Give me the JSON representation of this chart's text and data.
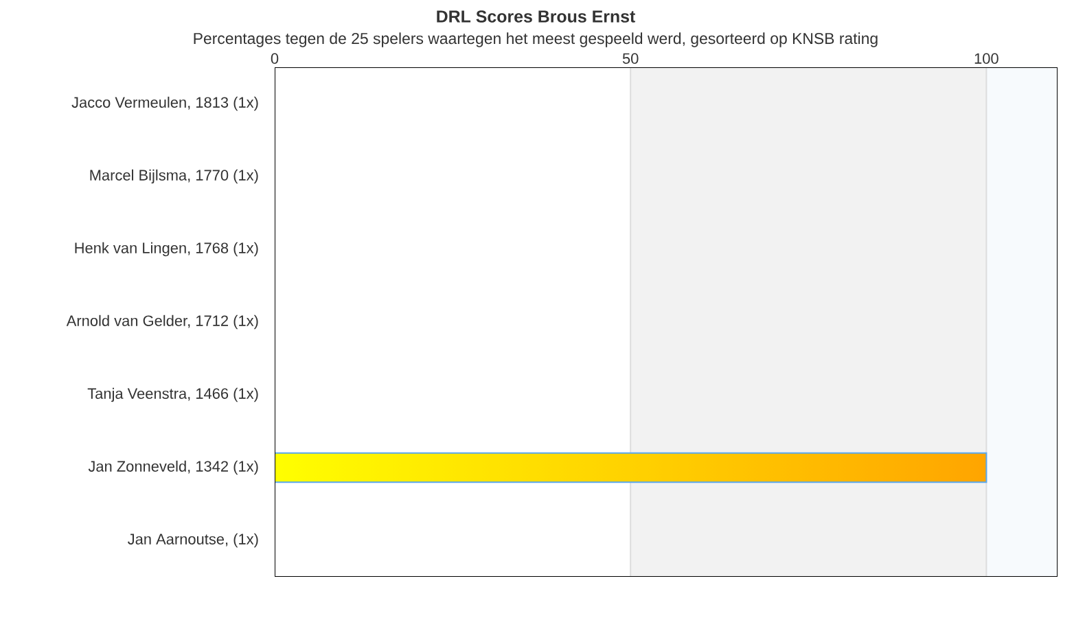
{
  "chart_data": {
    "type": "bar",
    "orientation": "horizontal",
    "title": "DRL Scores Brous Ernst",
    "subtitle": "Percentages tegen de 25 spelers waartegen het meest gespeeld werd, gesorteerd op KNSB rating",
    "categories": [
      "Jacco Vermeulen, 1813 (1x)",
      "Marcel Bijlsma, 1770 (1x)",
      "Henk van Lingen, 1768 (1x)",
      "Arnold van Gelder, 1712 (1x)",
      "Tanja Veenstra, 1466 (1x)",
      "Jan Zonneveld, 1342 (1x)",
      "Jan Aarnoutse,  (1x)"
    ],
    "values": [
      0,
      0,
      0,
      0,
      0,
      100,
      0
    ],
    "color": "#ffa500",
    "xlim": [
      0,
      110
    ],
    "xticks": [
      0,
      50,
      100
    ],
    "grid": "x",
    "bands": [
      {
        "axis": "x",
        "from": 50,
        "to": 100,
        "color": "#f2f2f2"
      },
      {
        "axis": "x",
        "from": 100,
        "to": 110,
        "color": "#f7fafd"
      }
    ]
  }
}
